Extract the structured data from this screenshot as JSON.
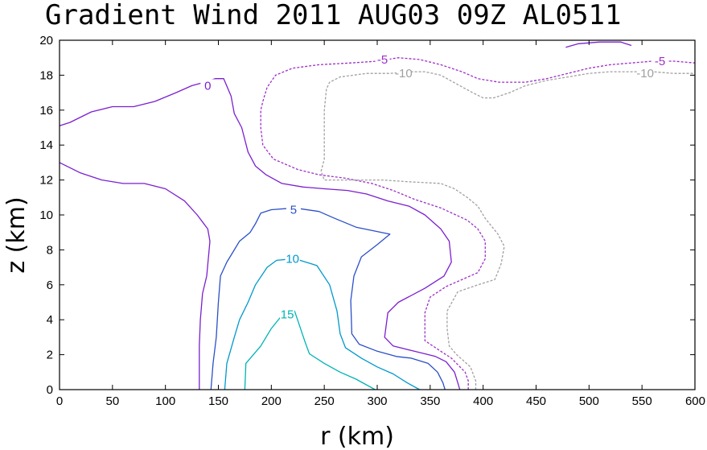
{
  "chart_data": {
    "type": "contour",
    "title": "Gradient Wind 2011 AUG03 09Z  AL0511",
    "xlabel": "r (km)",
    "ylabel": "z (km)",
    "xlim": [
      0,
      600
    ],
    "ylim": [
      0,
      20
    ],
    "xticks": [
      "0",
      "50",
      "100",
      "150",
      "200",
      "250",
      "300",
      "350",
      "400",
      "450",
      "500",
      "550",
      "600"
    ],
    "yticks": [
      "0",
      "2",
      "4",
      "6",
      "8",
      "10",
      "12",
      "14",
      "16",
      "18",
      "20"
    ],
    "contours": [
      {
        "level": "15",
        "color": "#00b3b3",
        "dashed": false,
        "label_at": [
          215,
          4.3
        ],
        "paths": [
          [
            [
              175,
              0
            ],
            [
              176,
              1.5
            ],
            [
              190,
              2.5
            ],
            [
              200,
              3.5
            ],
            [
              208,
              4.1
            ],
            [
              222,
              4.5
            ],
            [
              227,
              3.6
            ],
            [
              232,
              2.7
            ],
            [
              236,
              2.05
            ],
            [
              250,
              1.5
            ],
            [
              265,
              1.0
            ],
            [
              280,
              0.6
            ],
            [
              298,
              0
            ]
          ]
        ]
      },
      {
        "level": "10",
        "color": "#0099cc",
        "dashed": false,
        "label_at": [
          220,
          7.5
        ],
        "paths": [
          [
            [
              156,
              0
            ],
            [
              158,
              1.5
            ],
            [
              165,
              3
            ],
            [
              170,
              4
            ],
            [
              178,
              5
            ],
            [
              185,
              6
            ],
            [
              196,
              7
            ],
            [
              205,
              7.4
            ],
            [
              222,
              7.5
            ],
            [
              243,
              7.1
            ],
            [
              255,
              6
            ],
            [
              262,
              4.5
            ],
            [
              265,
              3.2
            ],
            [
              270,
              2.4
            ],
            [
              285,
              1.8
            ],
            [
              300,
              1.3
            ],
            [
              315,
              0.9
            ],
            [
              328,
              0.4
            ],
            [
              340,
              0
            ]
          ]
        ]
      },
      {
        "level": "5",
        "color": "#2c4fc8",
        "dashed": false,
        "label_at": [
          221,
          10.3
        ],
        "paths": [
          [
            [
              143,
              0
            ],
            [
              145,
              1.5
            ],
            [
              148,
              3
            ],
            [
              150,
              5
            ],
            [
              152,
              6.5
            ],
            [
              158,
              7.3
            ],
            [
              165,
              8
            ],
            [
              170,
              8.5
            ],
            [
              180,
              9
            ],
            [
              185,
              9.5
            ],
            [
              190,
              10.1
            ],
            [
              200,
              10.3
            ],
            [
              222,
              10.4
            ],
            [
              245,
              10.2
            ],
            [
              260,
              9.8
            ],
            [
              280,
              9.3
            ],
            [
              312,
              8.9
            ],
            [
              300,
              8.3
            ],
            [
              285,
              7.6
            ],
            [
              278,
              6.5
            ],
            [
              275,
              5.1
            ],
            [
              276,
              3.2
            ],
            [
              283,
              2.6
            ],
            [
              300,
              2.2
            ],
            [
              318,
              1.9
            ],
            [
              332,
              1.8
            ],
            [
              348,
              1.5
            ],
            [
              357,
              1.0
            ],
            [
              362,
              0.4
            ],
            [
              364,
              0
            ]
          ]
        ]
      },
      {
        "level": "0",
        "color": "#7b1fd0",
        "dashed": false,
        "label_at": [
          140,
          17.4
        ],
        "paths": [
          [
            [
              132,
              0
            ],
            [
              132,
              2.5
            ],
            [
              133,
              4
            ],
            [
              135,
              5.5
            ],
            [
              139,
              6.5
            ],
            [
              142,
              8.5
            ],
            [
              140,
              9.2
            ],
            [
              130,
              10
            ],
            [
              118,
              10.8
            ],
            [
              100,
              11.5
            ],
            [
              80,
              11.8
            ],
            [
              60,
              11.8
            ],
            [
              40,
              12
            ],
            [
              20,
              12.4
            ],
            [
              0,
              13
            ]
          ],
          [
            [
              0,
              15.1
            ],
            [
              10,
              15.3
            ],
            [
              20,
              15.6
            ],
            [
              30,
              15.9
            ],
            [
              50,
              16.2
            ],
            [
              70,
              16.2
            ],
            [
              90,
              16.5
            ],
            [
              110,
              17.0
            ],
            [
              125,
              17.4
            ],
            [
              137,
              17.6
            ],
            [
              147,
              17.8
            ],
            [
              155,
              17.8
            ],
            [
              162,
              16.8
            ],
            [
              165,
              15.8
            ],
            [
              172,
              15
            ],
            [
              178,
              13.6
            ],
            [
              185,
              12.8
            ],
            [
              195,
              12.3
            ],
            [
              210,
              11.8
            ],
            [
              230,
              11.6
            ],
            [
              250,
              11.5
            ],
            [
              272,
              11.4
            ],
            [
              290,
              11.2
            ],
            [
              310,
              10.8
            ],
            [
              330,
              10.5
            ],
            [
              345,
              10
            ],
            [
              360,
              9.2
            ],
            [
              368,
              8.5
            ],
            [
              370,
              7.3
            ],
            [
              363,
              6.5
            ],
            [
              345,
              5.8
            ],
            [
              320,
              5
            ],
            [
              310,
              4.4
            ],
            [
              307,
              3.0
            ],
            [
              315,
              2.5
            ],
            [
              335,
              2.2
            ],
            [
              355,
              1.9
            ],
            [
              365,
              1.6
            ],
            [
              373,
              1.0
            ],
            [
              376,
              0.4
            ],
            [
              378,
              0
            ]
          ],
          [
            [
              478,
              19.6
            ],
            [
              490,
              19.8
            ],
            [
              510,
              19.9
            ],
            [
              530,
              19.9
            ],
            [
              540,
              19.7
            ]
          ]
        ]
      },
      {
        "level": "-5",
        "color": "#9d2fc8",
        "dashed": true,
        "label_at": [
          305,
          18.9
        ],
        "label_at2": [
          567,
          18.8
        ],
        "paths": [
          [
            [
              386,
              0
            ],
            [
              386,
              0.5
            ],
            [
              383,
              1
            ],
            [
              370,
              1.8
            ],
            [
              360,
              2.2
            ],
            [
              345,
              2.8
            ],
            [
              345,
              4.4
            ],
            [
              350,
              5.3
            ],
            [
              365,
              5.9
            ],
            [
              395,
              6.7
            ],
            [
              402,
              7.5
            ],
            [
              402,
              8.5
            ],
            [
              395,
              9.2
            ],
            [
              385,
              9.7
            ],
            [
              360,
              10.4
            ],
            [
              335,
              10.9
            ],
            [
              315,
              11.4
            ],
            [
              295,
              11.8
            ],
            [
              270,
              12.1
            ],
            [
              245,
              12.3
            ],
            [
              225,
              12.6
            ],
            [
              202,
              13.2
            ],
            [
              192,
              14
            ],
            [
              190,
              15
            ],
            [
              190,
              16
            ],
            [
              192,
              16.5
            ],
            [
              196,
              17.3
            ],
            [
              204,
              18
            ],
            [
              220,
              18.4
            ],
            [
              245,
              18.6
            ],
            [
              275,
              18.7
            ],
            [
              300,
              18.8
            ],
            [
              320,
              19
            ],
            [
              340,
              18.9
            ],
            [
              360,
              18.6
            ],
            [
              380,
              18.2
            ],
            [
              395,
              17.8
            ],
            [
              415,
              17.6
            ],
            [
              440,
              17.6
            ],
            [
              460,
              17.8
            ],
            [
              480,
              18.1
            ],
            [
              500,
              18.4
            ],
            [
              520,
              18.6
            ],
            [
              540,
              18.7
            ],
            [
              560,
              18.8
            ],
            [
              580,
              18.8
            ],
            [
              600,
              18.7
            ]
          ]
        ]
      },
      {
        "level": "-10",
        "color": "#a0a0a0",
        "dashed": true,
        "label_at": [
          325,
          18.1
        ],
        "label_at2": [
          553,
          18.1
        ],
        "paths": [
          [
            [
              393,
              0
            ],
            [
              393,
              0.5
            ],
            [
              388,
              1.3
            ],
            [
              375,
              2.0
            ],
            [
              368,
              2.5
            ],
            [
              366,
              3.5
            ],
            [
              366,
              4.5
            ],
            [
              376,
              5.6
            ],
            [
              395,
              6.0
            ],
            [
              411,
              6.3
            ],
            [
              417,
              7.2
            ],
            [
              420,
              8.2
            ],
            [
              414,
              8.9
            ],
            [
              402,
              9.8
            ],
            [
              395,
              10.5
            ],
            [
              385,
              11
            ],
            [
              373,
              11.5
            ],
            [
              360,
              11.8
            ],
            [
              330,
              11.9
            ],
            [
              305,
              12
            ],
            [
              250,
              12.0
            ],
            [
              247,
              12.5
            ],
            [
              250,
              13.2
            ],
            [
              250,
              16
            ],
            [
              252,
              17.2
            ],
            [
              255,
              17.6
            ],
            [
              265,
              17.9
            ],
            [
              290,
              18.1
            ],
            [
              312,
              18.1
            ],
            [
              332,
              18.2
            ],
            [
              345,
              18.2
            ],
            [
              360,
              18.0
            ],
            [
              375,
              17.5
            ],
            [
              390,
              17.0
            ],
            [
              400,
              16.7
            ],
            [
              410,
              16.7
            ],
            [
              425,
              17.0
            ],
            [
              440,
              17.4
            ],
            [
              460,
              17.7
            ],
            [
              480,
              17.9
            ],
            [
              500,
              18.1
            ],
            [
              520,
              18.2
            ],
            [
              540,
              18.2
            ],
            [
              560,
              18.2
            ],
            [
              580,
              18.1
            ],
            [
              600,
              18.1
            ]
          ]
        ]
      }
    ]
  }
}
